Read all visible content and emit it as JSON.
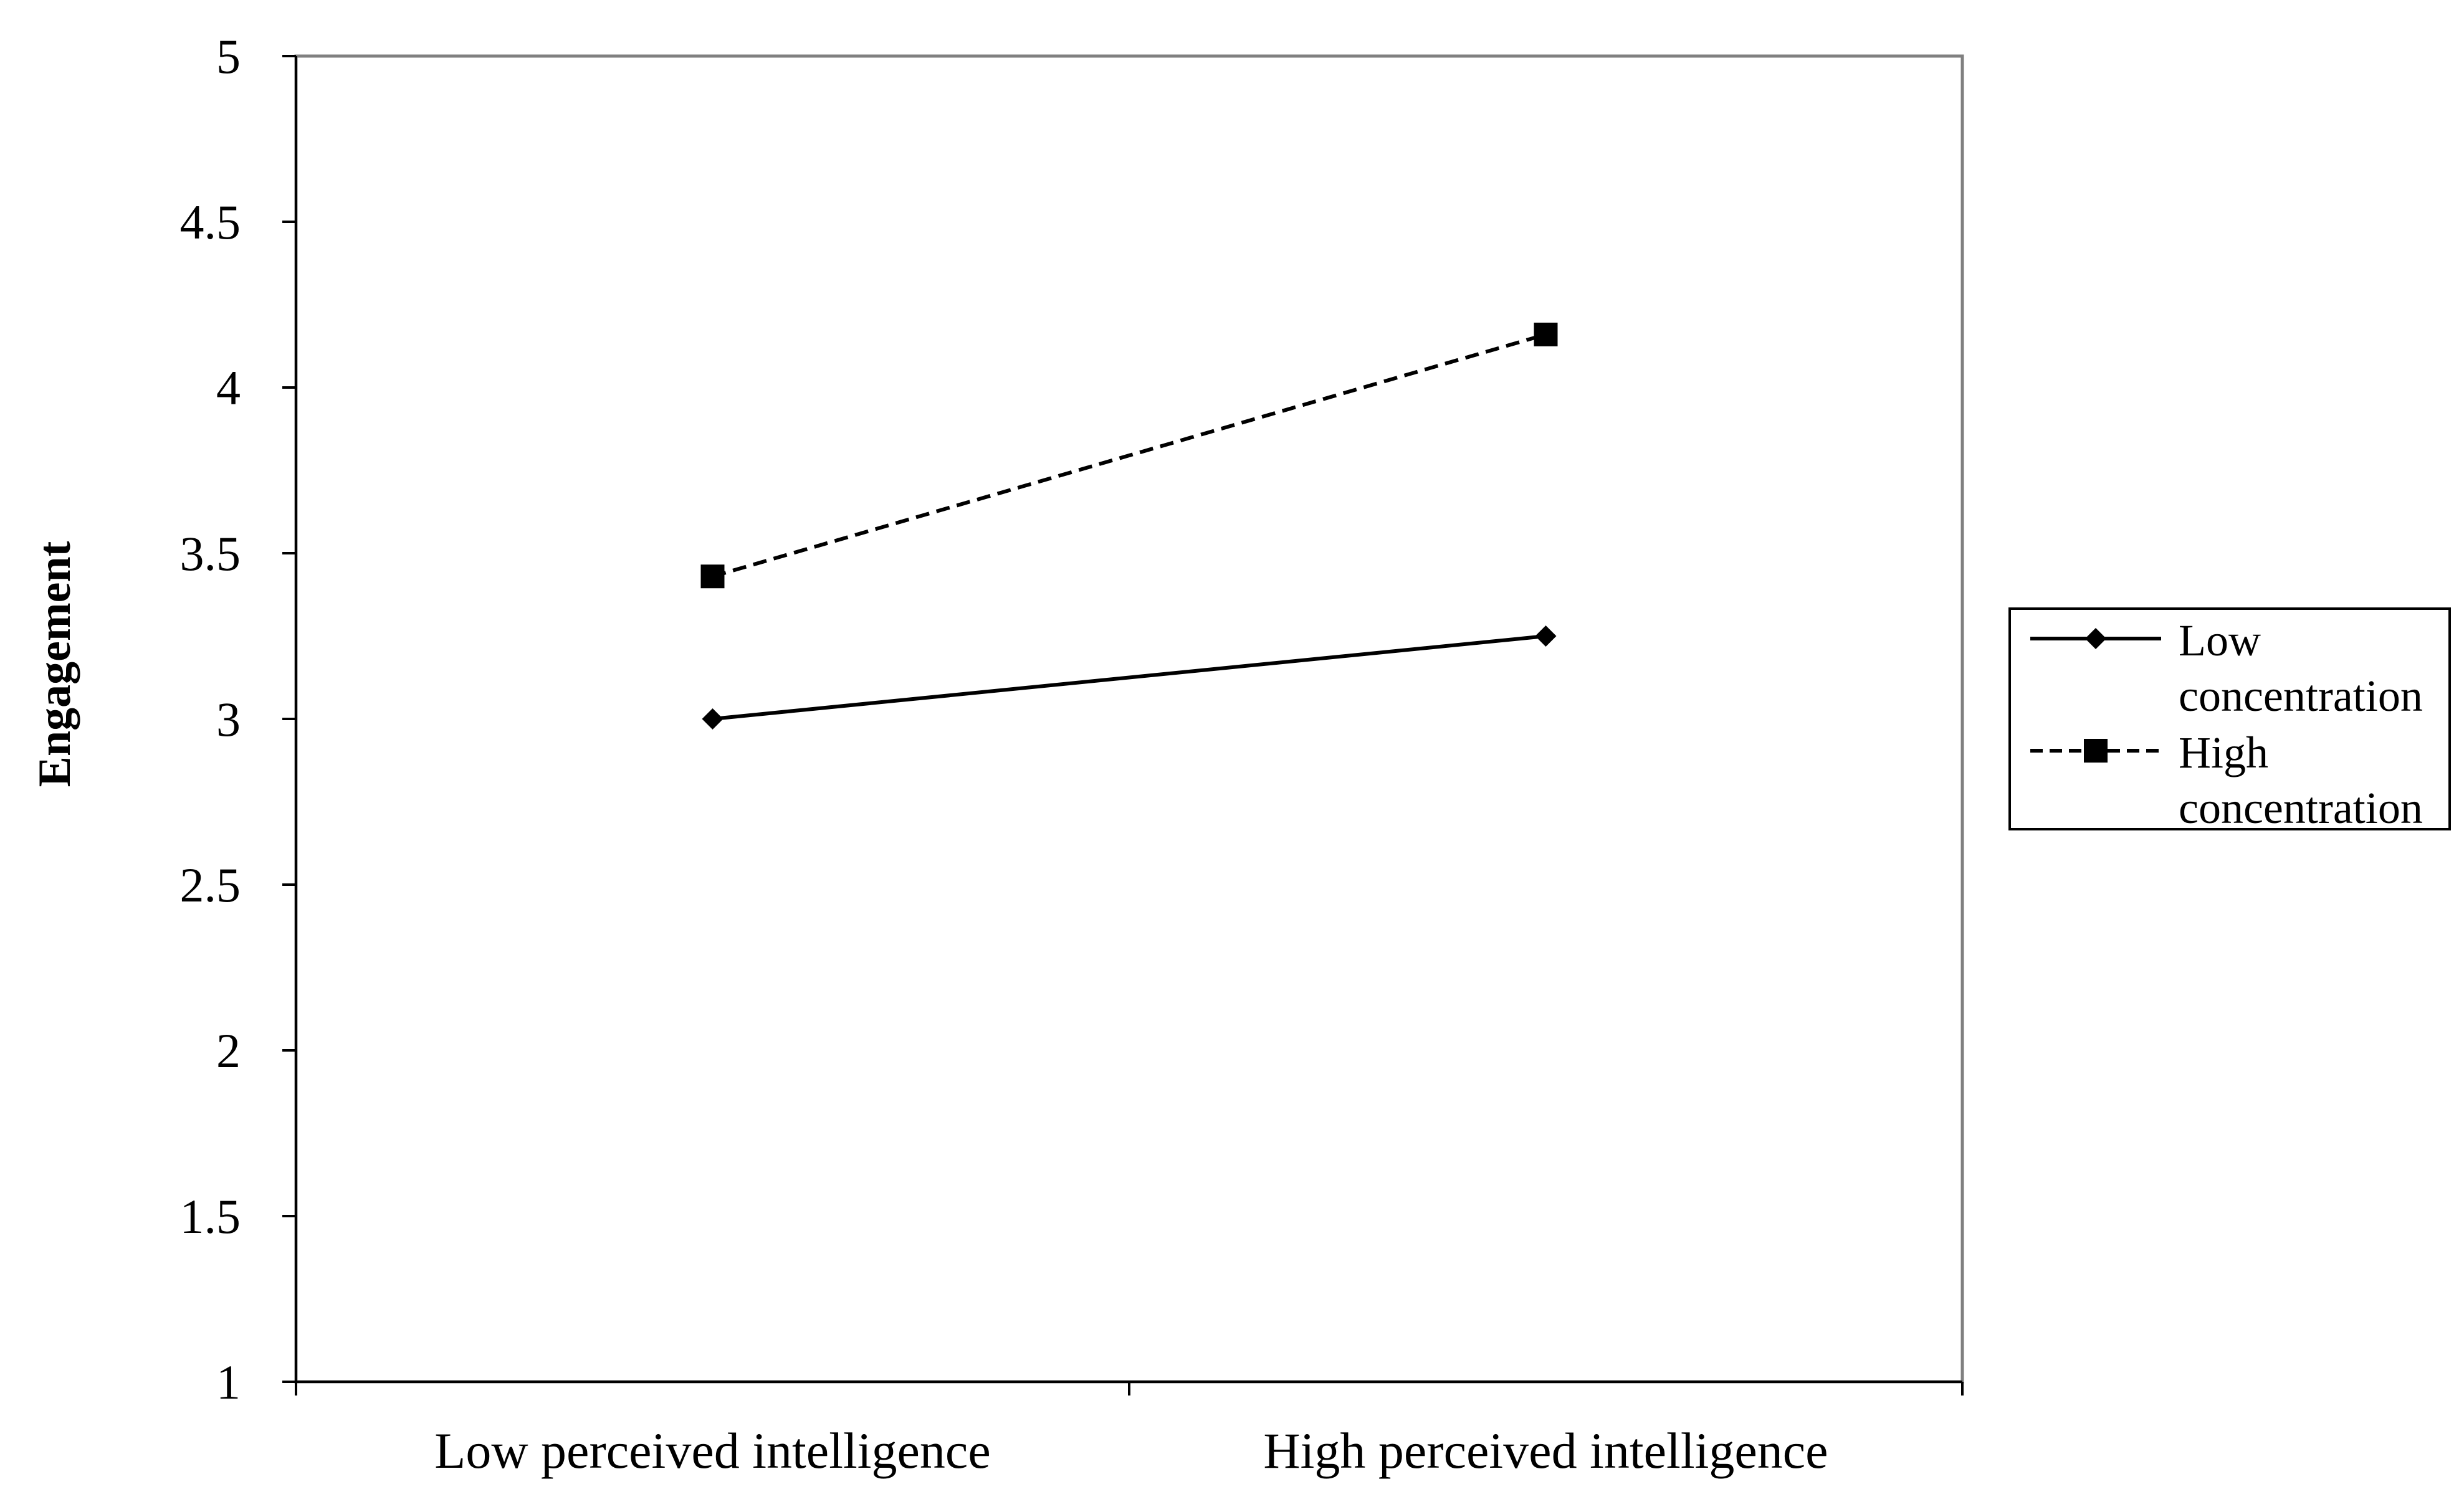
{
  "chart_data": {
    "type": "line",
    "title": "",
    "xlabel": "",
    "ylabel": "Engagement",
    "categories": [
      "Low perceived intelligence",
      "High perceived intelligence"
    ],
    "ylim": [
      1,
      5
    ],
    "yticks": [
      "1",
      "1.5",
      "2",
      "2.5",
      "3",
      "3.5",
      "4",
      "4.5",
      "5"
    ],
    "grid": false,
    "legend_position": "right",
    "series": [
      {
        "name": "Low concentration",
        "legend_lines": [
          "Low",
          "concentration"
        ],
        "values": [
          3.0,
          3.25
        ],
        "line_style": "solid",
        "marker": "diamond",
        "color": "#000000"
      },
      {
        "name": "High concentration",
        "legend_lines": [
          "High",
          "concentration"
        ],
        "values": [
          3.43,
          4.16
        ],
        "line_style": "dashed",
        "marker": "square",
        "color": "#000000"
      }
    ]
  }
}
